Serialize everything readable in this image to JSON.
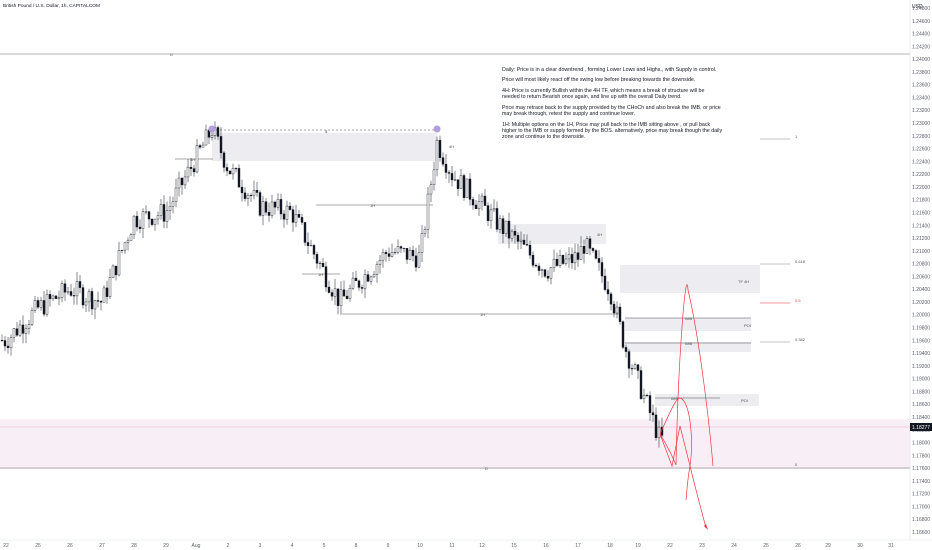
{
  "header": {
    "symbol_title": "British Pound / U.S. Dollar, 1h, CAPITALCOM",
    "currency": "USD"
  },
  "price_tag": {
    "value": "1.18277",
    "color": "#131722"
  },
  "colors": {
    "bull": "#131722",
    "bear": "#131722",
    "zone_gray": "#e9e9ee",
    "zone_pink": "#f7eef6",
    "projection": "#f23645",
    "swing_marker": "#b39ddb",
    "level_line": "#6b6b6b"
  },
  "notes": {
    "line1": "Daily: Price is in a clear downtrend , forming Lower Lows and Highs., with Supply in control.",
    "line2": "Price will most likely react off the swing low before breaking towards the downside.",
    "line3a": "4H: Price is currently Bullish within the 4H TF, which means a break of structure will be",
    "line3b": "needed to return Bearish once again, and line up with the overall Daily trend.",
    "line4a": "Price may retrace back to the supply provided by the CHoCh and also break the IMB, or price",
    "line4b": "may break through, retest the supply and continue lower.",
    "line5a": "1H: Multiple options on the 1H, Price may pull back to the IMB sitting above , or pull back",
    "line5b": "higher to the IMB or supply formed by the BOS. alternatively, price may break though the daily",
    "line5c": "zone and continue to the downside."
  },
  "annotations": {
    "d_top": "D",
    "d_bottom": "D",
    "s_label": "$",
    "label_4h_left": "4H",
    "label_4h_top": "4H",
    "label_1h_mid": "1H",
    "label_1h_low": "1H",
    "label_1h_long": "1H",
    "label_4h_right": "4H",
    "label_1h_zone": "1H",
    "imb_1": "IMB",
    "imb_2": "IMB",
    "imb_3": "IMB",
    "poi_1": "POI",
    "poi_2": "POI",
    "tf_4h": "TF  4H"
  },
  "fib": {
    "levels": [
      {
        "label": "1",
        "price": 1.2275
      },
      {
        "label": "0.618",
        "price": 1.2075
      },
      {
        "label": "0.5",
        "price": 1.2015
      },
      {
        "label": "0.382",
        "price": 1.1955
      },
      {
        "label": "0",
        "price": 1.1755
      }
    ]
  },
  "chart_data": {
    "type": "candlestick",
    "y_axis": {
      "unit": "USD",
      "min": 1.166,
      "max": 1.248,
      "ticks": [
        "1.24800",
        "1.24600",
        "1.24400",
        "1.24200",
        "1.24000",
        "1.23800",
        "1.23600",
        "1.23400",
        "1.23200",
        "1.23000",
        "1.22800",
        "1.22600",
        "1.22400",
        "1.22200",
        "1.22000",
        "1.21800",
        "1.21600",
        "1.21400",
        "1.21200",
        "1.21000",
        "1.20800",
        "1.20600",
        "1.20400",
        "1.20200",
        "1.20000",
        "1.19800",
        "1.19600",
        "1.19400",
        "1.19200",
        "1.19000",
        "1.18800",
        "1.18600",
        "1.18400",
        "1.18200",
        "1.18000",
        "1.17800",
        "1.17600",
        "1.17400",
        "1.17200",
        "1.17000",
        "1.16800",
        "1.16600"
      ]
    },
    "x_axis": {
      "ticks": [
        "22",
        "25",
        "26",
        "27",
        "28",
        "29",
        "Aug",
        "2",
        "3",
        "4",
        "5",
        "8",
        "9",
        "10",
        "11",
        "12",
        "15",
        "16",
        "17",
        "18",
        "19",
        "22",
        "23",
        "24",
        "25",
        "26",
        "29",
        "30",
        "31"
      ]
    },
    "series": [],
    "path_keypoints": [
      {
        "date": "Jul 22",
        "price": 1.196
      },
      {
        "date": "Jul 25",
        "price": 1.201
      },
      {
        "date": "Jul 26",
        "price": 1.204
      },
      {
        "date": "Jul 27",
        "price": 1.202
      },
      {
        "date": "Jul 28",
        "price": 1.215
      },
      {
        "date": "Jul 29",
        "price": 1.216
      },
      {
        "date": "Aug 1",
        "price": 1.229
      },
      {
        "date": "Aug 2",
        "price": 1.223
      },
      {
        "date": "Aug 3",
        "price": 1.217
      },
      {
        "date": "Aug 4",
        "price": 1.216
      },
      {
        "date": "Aug 5",
        "price": 1.202
      },
      {
        "date": "Aug 8",
        "price": 1.21
      },
      {
        "date": "Aug 9",
        "price": 1.209
      },
      {
        "date": "Aug 10",
        "price": 1.227
      },
      {
        "date": "Aug 11",
        "price": 1.222
      },
      {
        "date": "Aug 12",
        "price": 1.214
      },
      {
        "date": "Aug 15",
        "price": 1.207
      },
      {
        "date": "Aug 16",
        "price": 1.209
      },
      {
        "date": "Aug 17",
        "price": 1.211
      },
      {
        "date": "Aug 18",
        "price": 1.204
      },
      {
        "date": "Aug 19",
        "price": 1.195
      },
      {
        "date": "Aug 22",
        "price": 1.1805
      }
    ],
    "horizontal_levels": [
      {
        "name": "D",
        "price": 1.2445
      },
      {
        "name": "D",
        "price": 1.1757
      },
      {
        "name": "4H",
        "price": 1.225
      },
      {
        "name": "1H",
        "price": 1.216
      },
      {
        "name": "1H",
        "price": 1.206
      },
      {
        "name": "1H",
        "price": 1.1998
      }
    ],
    "zones": [
      {
        "name": "supply-4H",
        "top": 1.2275,
        "bottom": 1.2252
      },
      {
        "name": "supply-1H",
        "top": 1.214,
        "bottom": 1.212
      },
      {
        "name": "supply-4H-right",
        "top": 1.208,
        "bottom": 1.202
      },
      {
        "name": "IMB",
        "top": 1.1998,
        "bottom": 1.1985
      },
      {
        "name": "IMB",
        "top": 1.1955,
        "bottom": 1.1945
      },
      {
        "name": "IMB",
        "top": 1.1868,
        "bottom": 1.1848
      },
      {
        "name": "daily-demand",
        "top": 1.1837,
        "bottom": 1.1758
      }
    ]
  }
}
